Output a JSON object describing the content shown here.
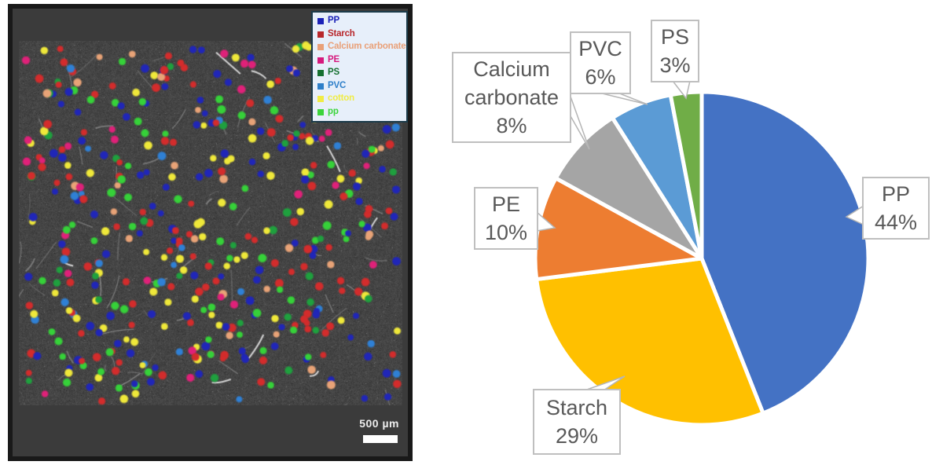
{
  "left_panel": {
    "description": "chemical-map-micrograph",
    "legend": {
      "items": [
        {
          "label": "PP",
          "color": "#1b22b8"
        },
        {
          "label": "Starch",
          "color": "#b8272b"
        },
        {
          "label": "Calcium carbonate",
          "color": "#e9a078"
        },
        {
          "label": "PE",
          "color": "#d6197d"
        },
        {
          "label": "PS",
          "color": "#167030"
        },
        {
          "label": "PVC",
          "color": "#2e7fc9"
        },
        {
          "label": "cotton",
          "color": "#f0ec46"
        },
        {
          "label": "pp",
          "color": "#3bd43b"
        }
      ]
    },
    "scale_bar": {
      "label": "500 µm"
    },
    "map": {
      "seed": 20240607,
      "background": "#474747",
      "dot_categories": [
        {
          "name": "PP",
          "color": "#2026b8",
          "count": 115
        },
        {
          "name": "Starch",
          "color": "#d32c2c",
          "count": 115
        },
        {
          "name": "cotton",
          "color": "#efe83a",
          "count": 70
        },
        {
          "name": "pp",
          "color": "#36d139",
          "count": 62
        },
        {
          "name": "PS",
          "color": "#1fa03e",
          "count": 32
        },
        {
          "name": "PE",
          "color": "#df2179",
          "count": 28
        },
        {
          "name": "Calcium carbonate",
          "color": "#e8a377",
          "count": 26
        },
        {
          "name": "PVC",
          "color": "#2f80d5",
          "count": 24
        }
      ],
      "fiber_count": 75
    }
  },
  "chart_data": {
    "type": "pie",
    "title": "",
    "categories": [
      "PP",
      "Starch",
      "PE",
      "Calcium carbonate",
      "PVC",
      "PS"
    ],
    "values": [
      44,
      29,
      10,
      8,
      6,
      3
    ],
    "unit": "%",
    "colors": [
      "#4472C4",
      "#FFC000",
      "#ED7D31",
      "#A5A5A5",
      "#5B9BD5",
      "#70AD47"
    ],
    "start_angle_deg": 0,
    "direction": "clockwise",
    "slice_border_color": "#ffffff",
    "label_style": "callout-boxes",
    "labels": [
      {
        "category": "PP",
        "text": "PP 44%"
      },
      {
        "category": "Starch",
        "text": "Starch 29%"
      },
      {
        "category": "PE",
        "text": "PE 10%"
      },
      {
        "category": "Calcium carbonate",
        "text": "Calcium carbonate 8%"
      },
      {
        "category": "PVC",
        "text": "PVC 6%"
      },
      {
        "category": "PS",
        "text": "PS 3%"
      }
    ],
    "legend_position": "none"
  }
}
